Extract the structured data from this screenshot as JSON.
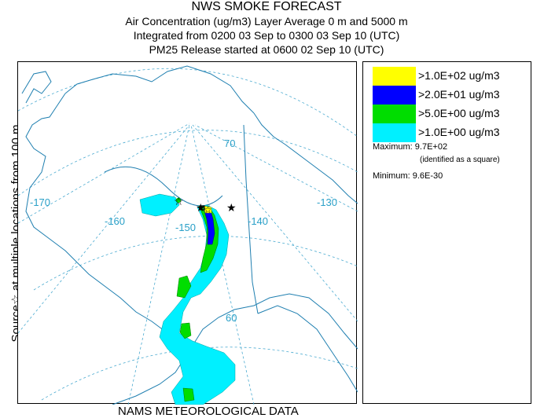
{
  "header": {
    "title": "NWS SMOKE FORECAST",
    "line2": "Air Concentration (ug/m3) Layer Average    0 m and  5000 m",
    "line3": "Integrated from 0200 03 Sep to 0300 03 Sep 10 (UTC)",
    "line4": "PM25 Release started at 0600 02 Sep 10 (UTC)"
  },
  "side_label": "Source☆ at multiple locations from 100 m",
  "bottom_label": "NAMS METEOROLOGICAL DATA",
  "map": {
    "grid_labels": {
      "lat70": "70",
      "lat60": "60",
      "lon170": "-170",
      "lon160": "-160",
      "lon150": "-150",
      "lon140": "-140",
      "lon130": "-130"
    },
    "colors": {
      "coast": "#1f7fb0",
      "grid": "#4aaad0",
      "level1": "#00f0ff",
      "level2": "#00dd00",
      "level3": "#0000ff",
      "level4": "#ffff00"
    }
  },
  "legend": {
    "items": [
      {
        "label": ">1.0E+02 ug/m3",
        "color": "#ffff00"
      },
      {
        "label": ">2.0E+01 ug/m3",
        "color": "#0000ff"
      },
      {
        "label": ">5.0E+00 ug/m3",
        "color": "#00dd00"
      },
      {
        "label": ">1.0E+00 ug/m3",
        "color": "#00f0ff"
      }
    ],
    "maximum_label": "Maximum: 9.7E+02",
    "maximum_note": "(identified as a square)",
    "minimum_label": "Minimum: 9.6E-30"
  }
}
